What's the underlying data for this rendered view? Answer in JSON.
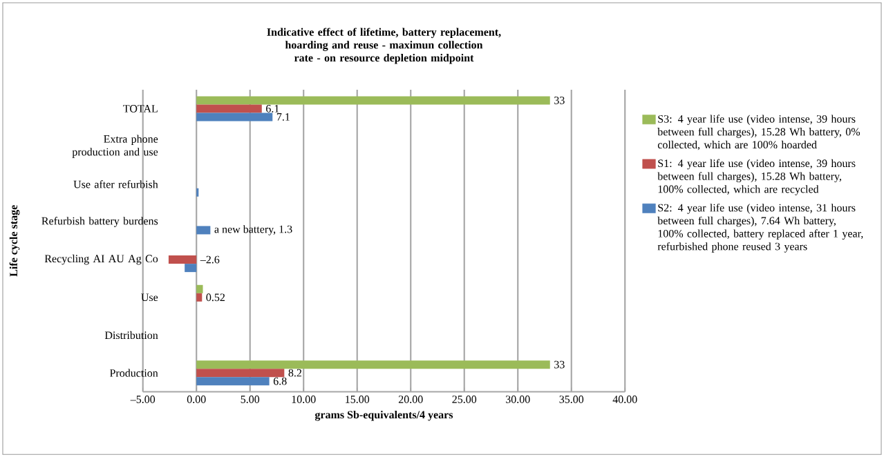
{
  "chart_data": {
    "type": "bar",
    "orientation": "horizontal",
    "title": "Indicative effect of lifetime, battery replacement, hoarding and reuse - maximun collection rate - on resource depletion midpoint",
    "xlabel": "grams Sb-equivalents/4 years",
    "ylabel": "Life cycle stage",
    "categories": [
      "TOTAL",
      "Extra phone production and use",
      "Use after refurbish",
      "Refurbish battery burdens",
      "Recycling AI AU Ag Co",
      "Use",
      "Distribution",
      "Production"
    ],
    "series": [
      {
        "name": "S3: 4 year life use (video intense, 39 hours between full charges), 15.28 Wh battery, 0% collected, which are 100% hoarded",
        "color": "#9bbb59",
        "values": [
          33,
          null,
          null,
          null,
          null,
          0.6,
          null,
          33
        ],
        "value_labels": [
          "33",
          null,
          null,
          null,
          null,
          null,
          null,
          "33"
        ]
      },
      {
        "name": "S1: 4 year life use (video intense, 39 hours between full charges), 15.28 Wh battery, 100% collected, which are recycled",
        "color": "#c0504d",
        "values": [
          6.1,
          null,
          null,
          null,
          -2.6,
          0.52,
          null,
          8.2
        ],
        "value_labels": [
          "6.1",
          null,
          null,
          null,
          "–2.6",
          "0.52",
          null,
          "8.2"
        ]
      },
      {
        "name": "S2: 4 year life use (video intense, 31 hours between full charges), 7.64 Wh battery, 100% collected, battery replaced after 1 year, refurbished phone reused 3 years",
        "color": "#4f81bd",
        "values": [
          7.1,
          null,
          0.2,
          1.3,
          -1.1,
          null,
          null,
          6.8
        ],
        "value_labels": [
          "7.1",
          null,
          null,
          "a new battery, 1.3",
          null,
          null,
          null,
          "6.8"
        ]
      }
    ],
    "xlim": [
      -5,
      40
    ],
    "xticks": [
      {
        "value": -5,
        "label": "–5.00"
      },
      {
        "value": 0,
        "label": "0.00"
      },
      {
        "value": 5,
        "label": "5.00"
      },
      {
        "value": 10,
        "label": "10.00"
      },
      {
        "value": 15,
        "label": "15.00"
      },
      {
        "value": 20,
        "label": "20.00"
      },
      {
        "value": 25,
        "label": "25.00"
      },
      {
        "value": 30,
        "label": "30.00"
      },
      {
        "value": 35,
        "label": "35.00"
      },
      {
        "value": 40,
        "label": "40.00"
      }
    ],
    "grid": "x",
    "legend": "right"
  }
}
